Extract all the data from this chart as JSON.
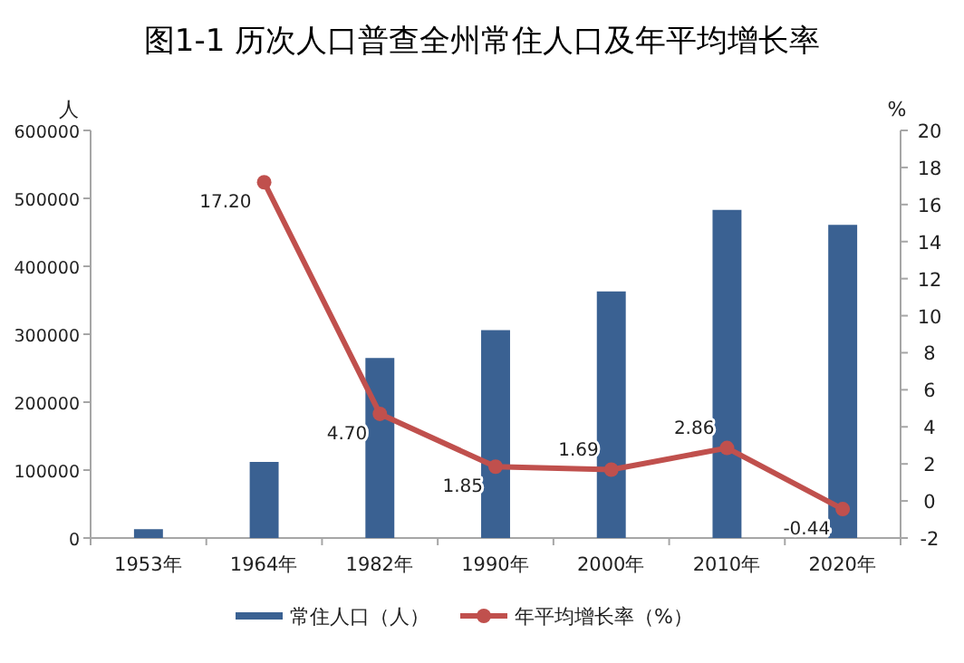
{
  "chart_data": {
    "type": "bar",
    "title": "图1-1 历次人口普查全州常住人口及年平均增长率",
    "categories": [
      "1953年",
      "1964年",
      "1982年",
      "1990年",
      "2000年",
      "2010年",
      "2020年"
    ],
    "ylabel": "人",
    "y2label": "%",
    "ylim": [
      0,
      600000
    ],
    "yticks": [
      0,
      100000,
      200000,
      300000,
      400000,
      500000,
      600000
    ],
    "y2lim": [
      -2,
      20
    ],
    "y2ticks": [
      -2,
      0,
      2,
      4,
      6,
      8,
      10,
      12,
      14,
      16,
      18,
      20
    ],
    "series": [
      {
        "name": "常住人口（人）",
        "color": "#3a6192",
        "values": [
          13000,
          112000,
          265000,
          306000,
          363000,
          483000,
          461000
        ]
      },
      {
        "name": "年平均增长率（%）",
        "type": "line",
        "axis": "y2",
        "color": "#c0504d",
        "marker": "circle",
        "values": [
          null,
          17.2,
          4.7,
          1.85,
          1.69,
          2.86,
          -0.44
        ],
        "value_labels": [
          null,
          "17.20",
          "4.70",
          "1.85",
          "1.69",
          "2.86",
          "-0.44"
        ]
      }
    ],
    "legend": "bottom",
    "grid": false
  }
}
